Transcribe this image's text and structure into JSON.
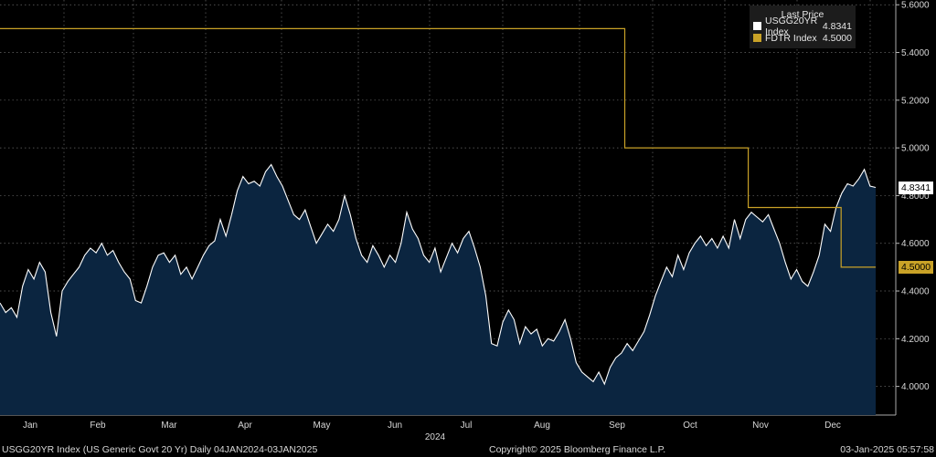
{
  "chart_data": {
    "type": "line",
    "title": "",
    "legend": {
      "header": "Last Price",
      "position": "top-right"
    },
    "series": [
      {
        "name": "USGG20YR Index",
        "last": "4.8341",
        "color": "#ffffff",
        "fill": "#0b2540",
        "values": [
          4.35,
          4.31,
          4.33,
          4.29,
          4.42,
          4.49,
          4.45,
          4.52,
          4.48,
          4.31,
          4.21,
          4.4,
          4.44,
          4.47,
          4.5,
          4.55,
          4.58,
          4.56,
          4.6,
          4.55,
          4.57,
          4.52,
          4.48,
          4.45,
          4.36,
          4.35,
          4.42,
          4.5,
          4.55,
          4.56,
          4.52,
          4.55,
          4.47,
          4.5,
          4.45,
          4.5,
          4.55,
          4.59,
          4.61,
          4.7,
          4.63,
          4.72,
          4.82,
          4.88,
          4.85,
          4.86,
          4.84,
          4.9,
          4.93,
          4.88,
          4.84,
          4.78,
          4.72,
          4.7,
          4.74,
          4.67,
          4.6,
          4.64,
          4.68,
          4.65,
          4.7,
          4.8,
          4.72,
          4.62,
          4.55,
          4.52,
          4.59,
          4.55,
          4.5,
          4.55,
          4.52,
          4.6,
          4.73,
          4.66,
          4.62,
          4.55,
          4.52,
          4.58,
          4.48,
          4.54,
          4.6,
          4.56,
          4.62,
          4.65,
          4.58,
          4.5,
          4.38,
          4.18,
          4.17,
          4.27,
          4.32,
          4.28,
          4.18,
          4.25,
          4.22,
          4.24,
          4.17,
          4.2,
          4.19,
          4.23,
          4.28,
          4.2,
          4.1,
          4.06,
          4.04,
          4.02,
          4.06,
          4.01,
          4.08,
          4.12,
          4.14,
          4.18,
          4.15,
          4.19,
          4.23,
          4.3,
          4.38,
          4.44,
          4.5,
          4.46,
          4.55,
          4.49,
          4.56,
          4.6,
          4.63,
          4.59,
          4.62,
          4.58,
          4.63,
          4.58,
          4.7,
          4.62,
          4.7,
          4.73,
          4.71,
          4.69,
          4.72,
          4.66,
          4.6,
          4.52,
          4.45,
          4.49,
          4.44,
          4.42,
          4.48,
          4.55,
          4.68,
          4.65,
          4.75,
          4.81,
          4.85,
          4.84,
          4.87,
          4.91,
          4.84,
          4.8341
        ]
      },
      {
        "name": "FDTR Index",
        "last": "4.5000",
        "color": "#c9a227",
        "steps": [
          {
            "from": 0,
            "value": 5.5
          },
          {
            "from": 0.7135,
            "value": 5.0
          },
          {
            "from": 0.8545,
            "value": 4.75
          },
          {
            "from": 0.9605,
            "value": 4.5
          },
          {
            "from": 1.0,
            "value": 4.5
          }
        ]
      }
    ],
    "x": {
      "tick_labels": [
        "Jan",
        "Feb",
        "Mar",
        "Apr",
        "May",
        "Jun",
        "Jul",
        "Aug",
        "Sep",
        "Oct",
        "Nov",
        "Dec"
      ],
      "year_label": "2024"
    },
    "y": {
      "ylim": [
        3.88,
        5.62
      ],
      "ticks": [
        4.0,
        4.2,
        4.4,
        4.6,
        4.8,
        5.0,
        5.2,
        5.4,
        5.6
      ],
      "tick_labels": [
        "4.0000",
        "4.2000",
        "4.4000",
        "4.6000",
        "4.8000",
        "5.0000",
        "5.2000",
        "5.4000",
        "5.6000"
      ]
    },
    "grid": true
  },
  "footer": {
    "left": "USGG20YR Index (US Generic Govt 20 Yr)  Daily 04JAN2024-03JAN2025",
    "center": "Copyright© 2025 Bloomberg Finance L.P.",
    "right": "03-Jan-2025 05:57:58"
  }
}
